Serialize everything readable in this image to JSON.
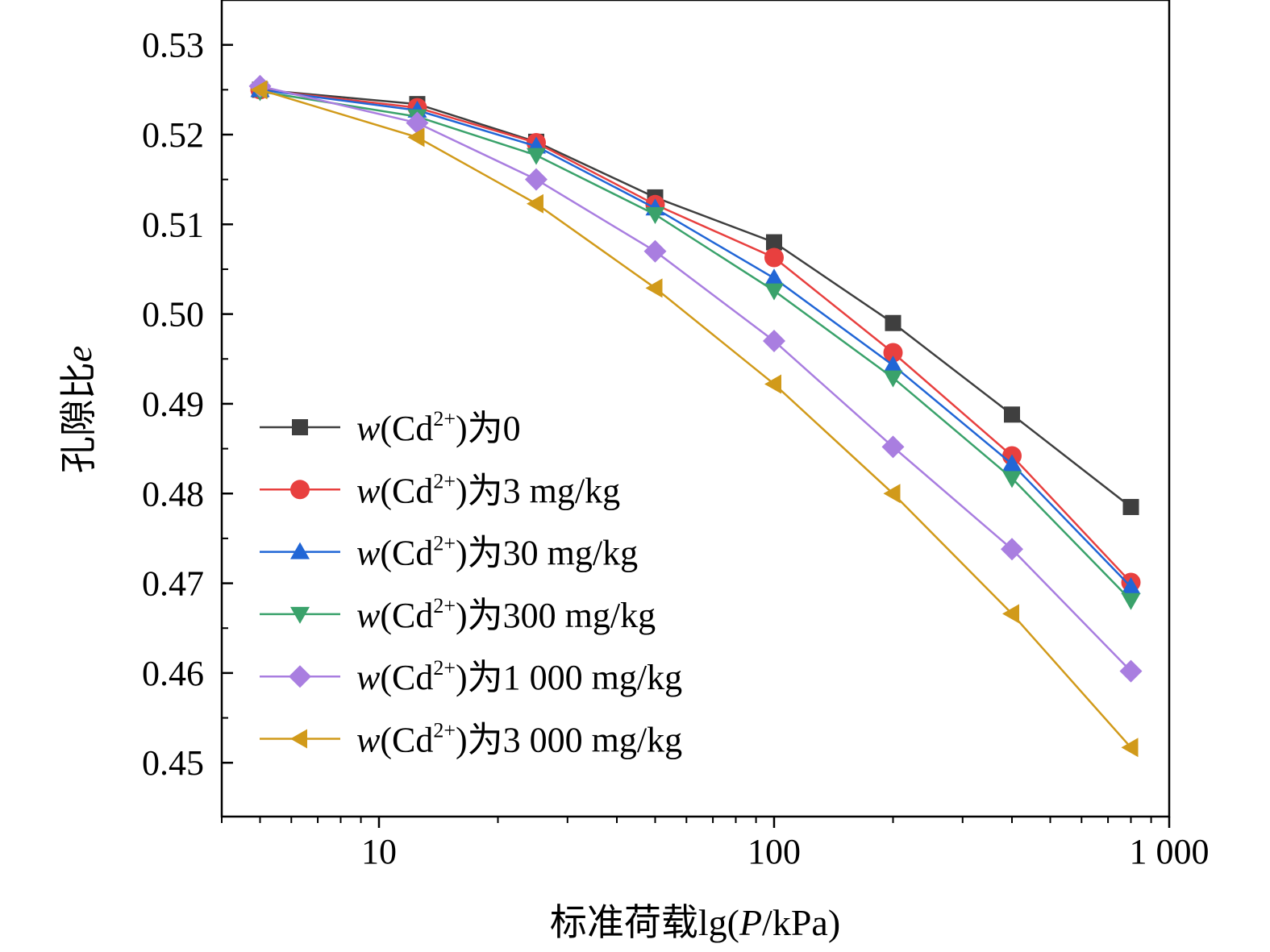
{
  "chart_data": {
    "type": "line",
    "xscale": "log",
    "xlim": [
      4.0,
      1000
    ],
    "ylim": [
      0.444,
      0.535
    ],
    "x": [
      5,
      12.5,
      25,
      50,
      100,
      200,
      400,
      800
    ],
    "xticks": [
      10,
      100,
      1000
    ],
    "xtick_labels": [
      "10",
      "100",
      "1 000"
    ],
    "yticks": [
      0.45,
      0.46,
      0.47,
      0.48,
      0.49,
      0.5,
      0.51,
      0.52,
      0.53
    ],
    "ytick_labels": [
      "0.45",
      "0.46",
      "0.47",
      "0.48",
      "0.49",
      "0.50",
      "0.51",
      "0.52",
      "0.53"
    ],
    "xlabel": {
      "prefix": "标准荷载lg(",
      "italic": "P",
      "suffix": "/kPa)"
    },
    "ylabel": {
      "prefix": "孔隙比",
      "italic": "e"
    },
    "grid": false,
    "legend_position": "lower-left",
    "series": [
      {
        "name": "w(Cd2+)为0",
        "label": {
          "pre": "w",
          "mid": "(Cd",
          "sup": "2+",
          "post": ")为0"
        },
        "color": "#3f3f3f",
        "marker": "square",
        "values": [
          0.525,
          0.5234,
          0.5192,
          0.513,
          0.508,
          0.499,
          0.4888,
          0.4785
        ]
      },
      {
        "name": "w(Cd2+)为3 mg/kg",
        "label": {
          "pre": "w",
          "mid": "(Cd",
          "sup": "2+",
          "post": ")为3 mg/kg"
        },
        "color": "#e8403f",
        "marker": "circle",
        "values": [
          0.525,
          0.523,
          0.5191,
          0.5122,
          0.5063,
          0.4957,
          0.4842,
          0.4701
        ]
      },
      {
        "name": "w(Cd2+)为30 mg/kg",
        "label": {
          "pre": "w",
          "mid": "(Cd",
          "sup": "2+",
          "post": ")为30 mg/kg"
        },
        "color": "#2166d6",
        "marker": "triangle-up",
        "values": [
          0.525,
          0.5227,
          0.5187,
          0.5118,
          0.504,
          0.4943,
          0.4833,
          0.4696
        ]
      },
      {
        "name": "w(Cd2+)为300 mg/kg",
        "label": {
          "pre": "w",
          "mid": "(Cd",
          "sup": "2+",
          "post": ")为300 mg/kg"
        },
        "color": "#3aa26b",
        "marker": "triangle-down",
        "values": [
          0.5248,
          0.522,
          0.5177,
          0.5111,
          0.5026,
          0.4929,
          0.4817,
          0.4681
        ]
      },
      {
        "name": "w(Cd2+)为1 000 mg/kg",
        "label": {
          "pre": "w",
          "mid": "(Cd",
          "sup": "2+",
          "post": ")为1 000 mg/kg"
        },
        "color": "#a97ee0",
        "marker": "diamond",
        "values": [
          0.5254,
          0.5213,
          0.515,
          0.507,
          0.497,
          0.4852,
          0.4738,
          0.4602
        ]
      },
      {
        "name": "w(Cd2+)为3 000 mg/kg",
        "label": {
          "pre": "w",
          "mid": "(Cd",
          "sup": "2+",
          "post": ")为3 000 mg/kg"
        },
        "color": "#d19a1a",
        "marker": "triangle-left",
        "values": [
          0.525,
          0.5197,
          0.5123,
          0.5029,
          0.4922,
          0.48,
          0.4666,
          0.4517
        ]
      }
    ]
  }
}
